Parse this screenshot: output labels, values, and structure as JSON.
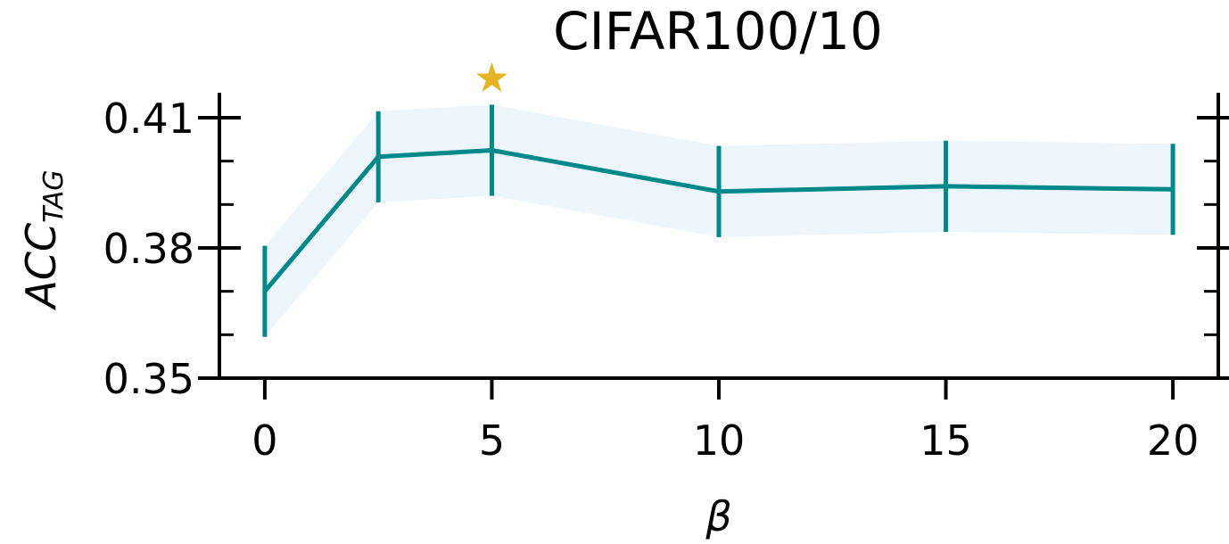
{
  "chart_data": {
    "type": "line",
    "title": "CIFAR100/10",
    "xlabel": "β",
    "ylabel": {
      "main": "ACC",
      "sub": "TAG"
    },
    "x": [
      0,
      2.5,
      5,
      10,
      15,
      20
    ],
    "series": [
      {
        "values": [
          0.37,
          0.401,
          0.4025,
          0.393,
          0.3942,
          0.3935
        ],
        "error": [
          0.0105,
          0.0105,
          0.0105,
          0.0105,
          0.0105,
          0.0105
        ]
      }
    ],
    "best": {
      "x": 5,
      "marker": "★"
    },
    "xlim": [
      -1,
      21
    ],
    "ylim": [
      0.35,
      0.4155
    ],
    "xticks": [
      0,
      5,
      10,
      15,
      20
    ],
    "xtick_labels": [
      "0",
      "5",
      "10",
      "15",
      "20"
    ],
    "yticks": [
      0.35,
      0.38,
      0.41
    ],
    "ytick_labels": [
      "0.35",
      "0.38",
      "0.41"
    ],
    "yminor_step": 0.01,
    "grid": false,
    "colors": {
      "line": "#00898a",
      "band": "#eef6fd",
      "star": "#e6b422"
    }
  }
}
